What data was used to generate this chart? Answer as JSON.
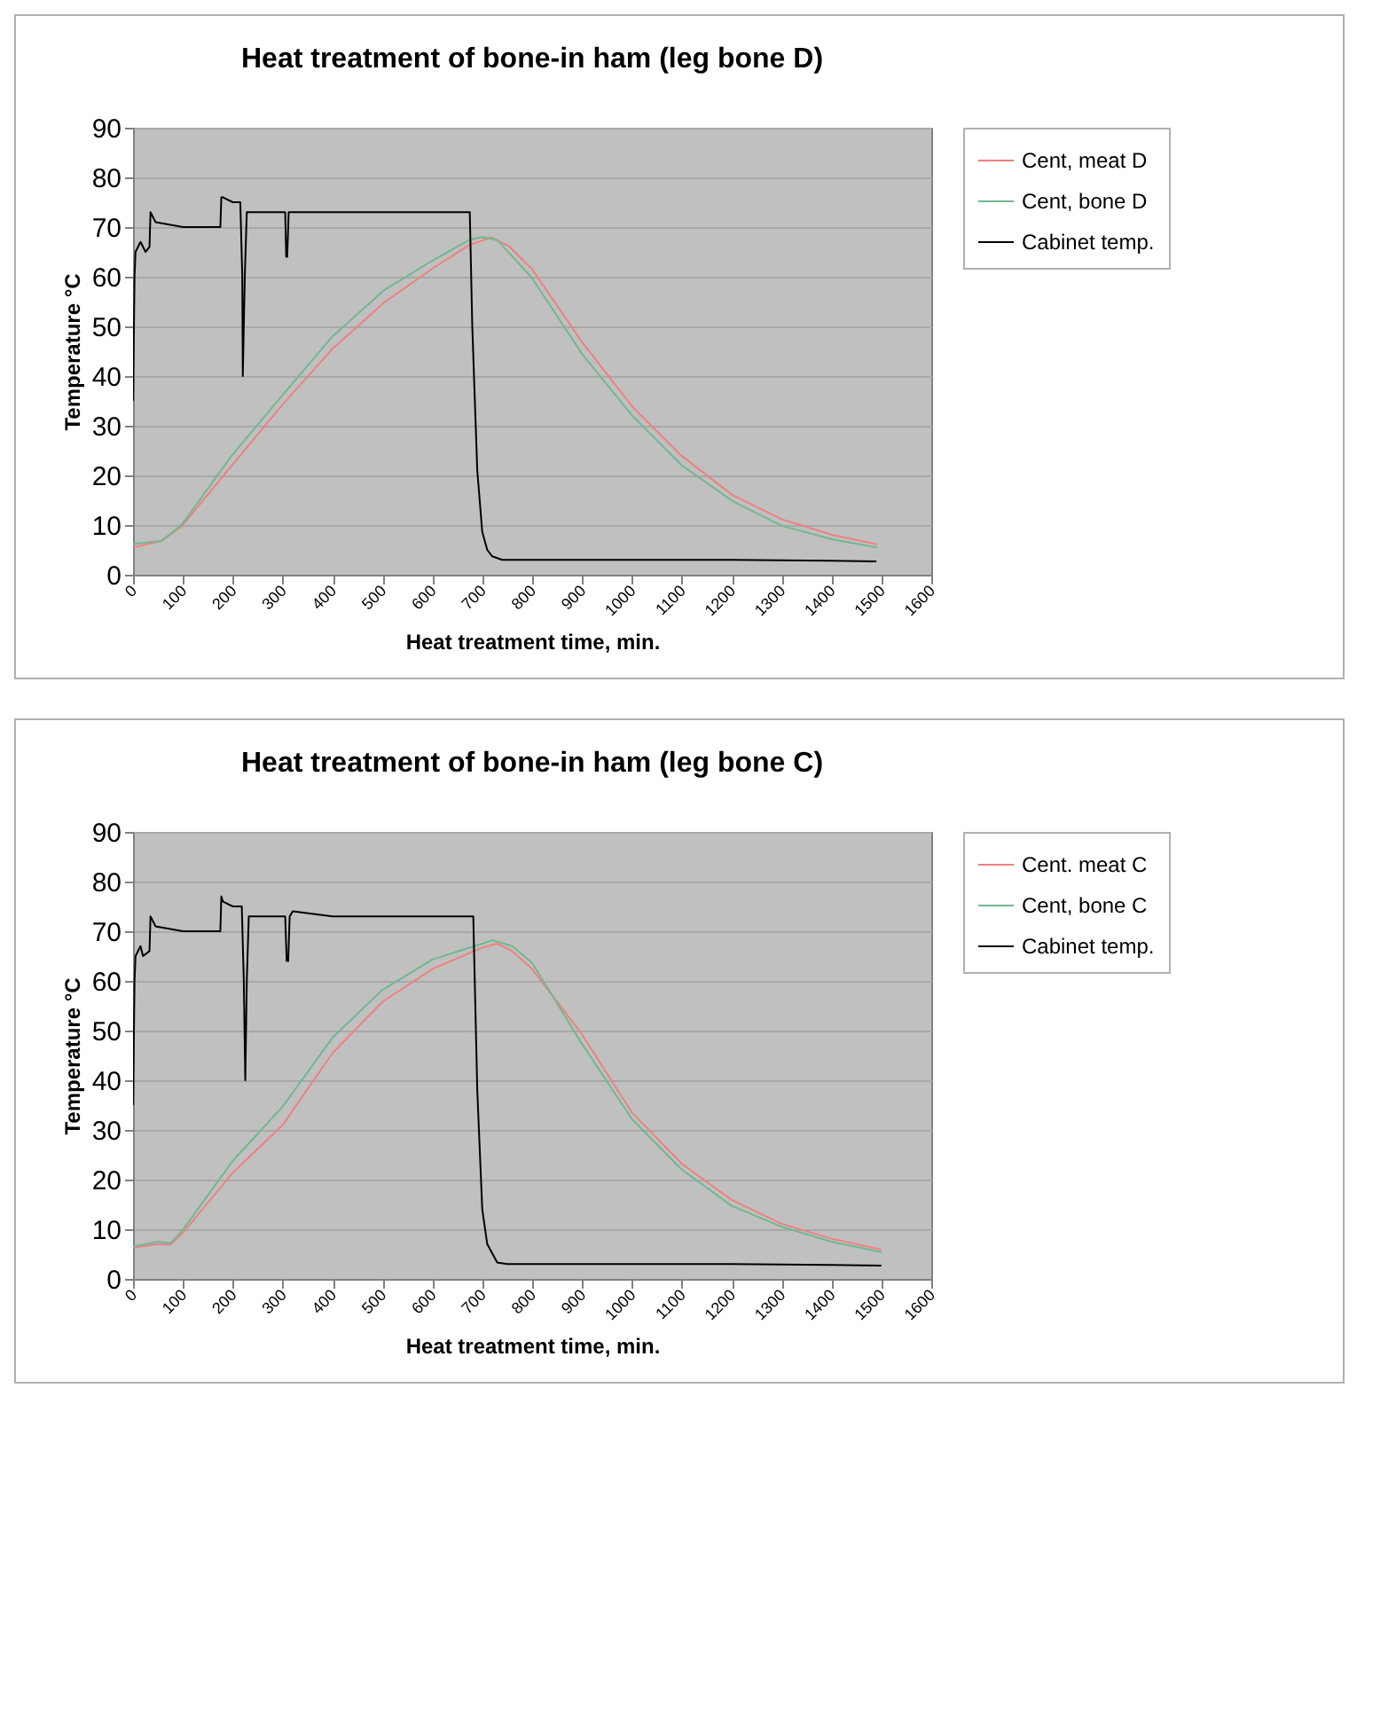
{
  "chart_data": [
    {
      "type": "line",
      "title": "Heat treatment of bone-in ham (leg bone D)",
      "xlabel": "Heat treatment time, min.",
      "ylabel": "Temperature °C",
      "xlim": [
        0,
        1600
      ],
      "xticks": [
        0,
        100,
        200,
        300,
        400,
        500,
        600,
        700,
        800,
        900,
        1000,
        1100,
        1200,
        1300,
        1400,
        1500,
        1600
      ],
      "ylim": [
        0,
        90
      ],
      "yticks": [
        0,
        10,
        20,
        30,
        40,
        50,
        60,
        70,
        80,
        90
      ],
      "grid": "y",
      "legend": "right",
      "series": [
        {
          "name": "Cent, meat D",
          "color": "#f08080",
          "x": [
            0,
            57,
            98,
            198,
            301,
            400,
            502,
            601,
            674,
            718,
            753,
            800,
            901,
            1001,
            1099,
            1202,
            1302,
            1403,
            1491
          ],
          "values": [
            5.5,
            6.8,
            9.8,
            22,
            34.4,
            45.5,
            54.7,
            61.7,
            66.4,
            67.9,
            66.2,
            61.5,
            46.7,
            33.8,
            24,
            16,
            11.1,
            8,
            6.1
          ]
        },
        {
          "name": "Cent, bone D",
          "color": "#70b890",
          "x": [
            0,
            57,
            98,
            198,
            301,
            400,
            502,
            601,
            674,
            700,
            730,
            800,
            901,
            1001,
            1099,
            1202,
            1302,
            1403,
            1491
          ],
          "values": [
            6.2,
            6.8,
            10.1,
            24,
            36.3,
            48,
            57.2,
            63.3,
            67.4,
            68,
            67.4,
            59.7,
            44.3,
            32,
            22.1,
            14.8,
            9.8,
            7.1,
            5.5
          ]
        },
        {
          "name": "Cabinet temp.",
          "color": "#000000",
          "x": [
            0,
            3,
            5,
            15,
            25,
            33,
            35,
            45,
            100,
            175,
            177,
            180,
            200,
            215,
            219,
            220,
            224,
            228,
            305,
            307,
            309,
            312,
            400,
            500,
            600,
            675,
            680,
            690,
            700,
            710,
            720,
            740,
            800,
            1000,
            1200,
            1400,
            1490
          ],
          "values": [
            35,
            60,
            65,
            67,
            65,
            66,
            73,
            71,
            70,
            70,
            76,
            76,
            75,
            75,
            60,
            40,
            60,
            73,
            73,
            64,
            64,
            73,
            73,
            73,
            73,
            73,
            50,
            21,
            8.6,
            5,
            3.7,
            3,
            3,
            3,
            3,
            2.8,
            2.7
          ]
        }
      ]
    },
    {
      "type": "line",
      "title": "Heat treatment of bone-in ham (leg bone C)",
      "xlabel": "Heat treatment time, min.",
      "ylabel": "Temperature °C",
      "xlim": [
        0,
        1600
      ],
      "xticks": [
        0,
        100,
        200,
        300,
        400,
        500,
        600,
        700,
        800,
        900,
        1000,
        1100,
        1200,
        1300,
        1400,
        1500,
        1600
      ],
      "ylim": [
        0,
        90
      ],
      "yticks": [
        0,
        10,
        20,
        30,
        40,
        50,
        60,
        70,
        80,
        90
      ],
      "grid": "y",
      "legend": "right",
      "series": [
        {
          "name": "Cent. meat C",
          "color": "#f08080",
          "x": [
            0,
            50,
            75,
            100,
            200,
            300,
            400,
            500,
            600,
            700,
            730,
            760,
            800,
            900,
            1000,
            1100,
            1200,
            1300,
            1400,
            1500
          ],
          "values": [
            6.3,
            7,
            6.9,
            9.3,
            21.4,
            31,
            45.5,
            55.8,
            62.4,
            66.7,
            67.5,
            66,
            62.4,
            49.2,
            33.5,
            23.2,
            15.9,
            11.1,
            8.1,
            5.9
          ]
        },
        {
          "name": "Cent, bone C",
          "color": "#70b890",
          "x": [
            0,
            50,
            75,
            100,
            200,
            300,
            400,
            500,
            600,
            700,
            720,
            760,
            800,
            900,
            1000,
            1100,
            1200,
            1300,
            1400,
            1500
          ],
          "values": [
            6.5,
            7.5,
            7.2,
            9.9,
            23.8,
            34.7,
            48.6,
            58.2,
            64.3,
            67.5,
            68.2,
            67,
            63.6,
            47.3,
            32.2,
            22,
            14.7,
            10.5,
            7.5,
            5.4
          ]
        },
        {
          "name": "Cabinet temp.",
          "color": "#000000",
          "x": [
            0,
            3,
            5,
            15,
            20,
            33,
            35,
            45,
            100,
            175,
            177,
            180,
            200,
            218,
            222,
            225,
            228,
            232,
            305,
            308,
            311,
            314,
            320,
            400,
            500,
            600,
            682,
            690,
            700,
            710,
            730,
            750,
            1000,
            1200,
            1400,
            1500
          ],
          "values": [
            35,
            60,
            65,
            67,
            65,
            66,
            73,
            71,
            70,
            70,
            77,
            76,
            75,
            75,
            60,
            40,
            60,
            73,
            73,
            64,
            64,
            73,
            74,
            73,
            73,
            73,
            73,
            38,
            14,
            7,
            3.3,
            3,
            3,
            3,
            2.8,
            2.7
          ]
        }
      ]
    }
  ]
}
